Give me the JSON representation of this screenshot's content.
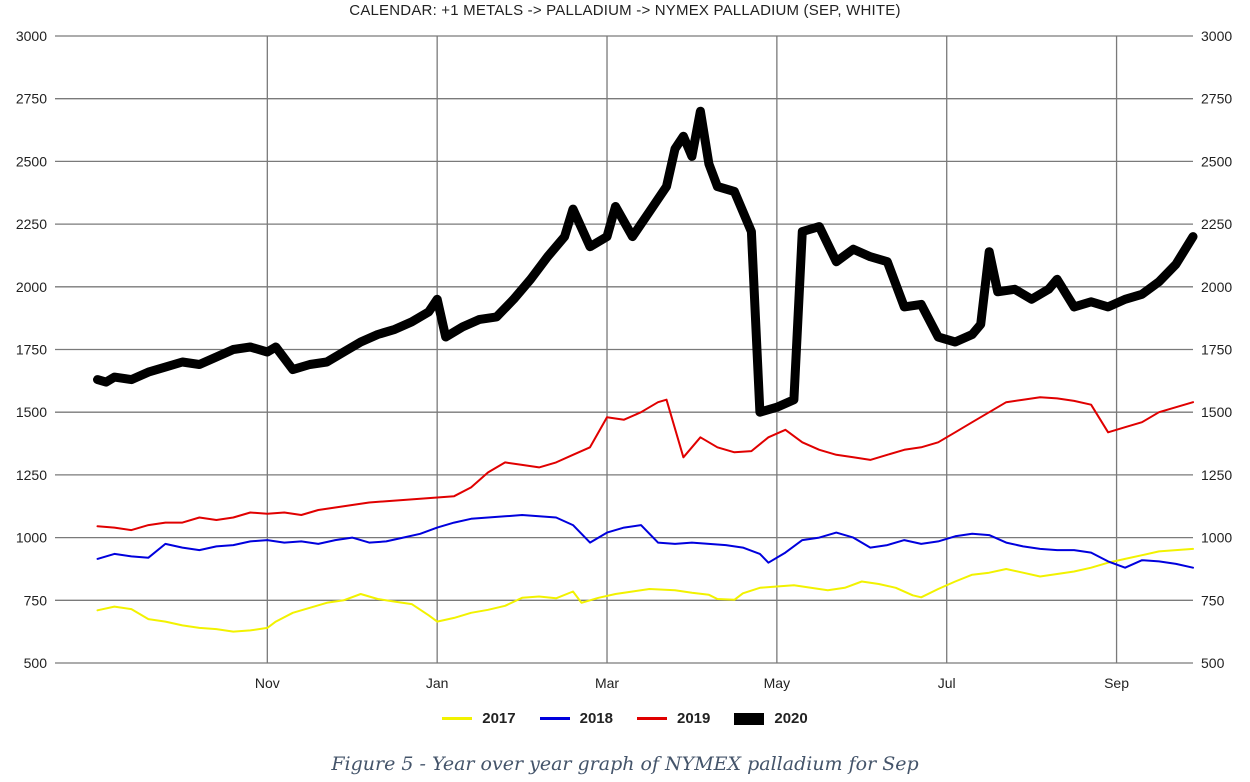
{
  "title": "CALENDAR: +1 METALS -> PALLADIUM -> NYMEX PALLADIUM (SEP, WHITE)",
  "caption": "Figure 5 - Year over year graph of NYMEX palladium for Sep",
  "chart_data": {
    "type": "line",
    "x_unit": "month",
    "x_range": [
      8.5,
      21.9
    ],
    "x_ticks": [
      {
        "label": "Nov",
        "x": 11
      },
      {
        "label": "Jan",
        "x": 13
      },
      {
        "label": "Mar",
        "x": 15
      },
      {
        "label": "May",
        "x": 17
      },
      {
        "label": "Jul",
        "x": 19
      },
      {
        "label": "Sep",
        "x": 21
      }
    ],
    "ylim": [
      500,
      3000
    ],
    "y_ticks": [
      500,
      750,
      1000,
      1250,
      1500,
      1750,
      2000,
      2250,
      2500,
      2750,
      3000
    ],
    "grid": true,
    "legend_position": "bottom",
    "series": [
      {
        "name": "2017",
        "color": "#f2f200",
        "width": 2,
        "points": [
          [
            9.0,
            710
          ],
          [
            9.2,
            725
          ],
          [
            9.4,
            715
          ],
          [
            9.6,
            675
          ],
          [
            9.8,
            665
          ],
          [
            10.0,
            650
          ],
          [
            10.2,
            640
          ],
          [
            10.4,
            635
          ],
          [
            10.6,
            625
          ],
          [
            10.8,
            630
          ],
          [
            11.0,
            640
          ],
          [
            11.1,
            665
          ],
          [
            11.3,
            700
          ],
          [
            11.5,
            720
          ],
          [
            11.7,
            740
          ],
          [
            11.9,
            750
          ],
          [
            12.1,
            775
          ],
          [
            12.3,
            755
          ],
          [
            12.5,
            745
          ],
          [
            12.7,
            735
          ],
          [
            12.9,
            690
          ],
          [
            13.0,
            665
          ],
          [
            13.2,
            680
          ],
          [
            13.4,
            700
          ],
          [
            13.6,
            712
          ],
          [
            13.8,
            728
          ],
          [
            14.0,
            760
          ],
          [
            14.2,
            765
          ],
          [
            14.4,
            758
          ],
          [
            14.6,
            785
          ],
          [
            14.7,
            740
          ],
          [
            14.9,
            760
          ],
          [
            15.1,
            775
          ],
          [
            15.3,
            785
          ],
          [
            15.5,
            795
          ],
          [
            15.8,
            790
          ],
          [
            16.0,
            780
          ],
          [
            16.2,
            772
          ],
          [
            16.3,
            755
          ],
          [
            16.5,
            752
          ],
          [
            16.6,
            778
          ],
          [
            16.8,
            800
          ],
          [
            17.0,
            805
          ],
          [
            17.2,
            810
          ],
          [
            17.4,
            800
          ],
          [
            17.6,
            790
          ],
          [
            17.8,
            800
          ],
          [
            18.0,
            825
          ],
          [
            18.2,
            815
          ],
          [
            18.4,
            800
          ],
          [
            18.6,
            770
          ],
          [
            18.7,
            762
          ],
          [
            18.9,
            795
          ],
          [
            19.1,
            825
          ],
          [
            19.3,
            852
          ],
          [
            19.5,
            860
          ],
          [
            19.7,
            875
          ],
          [
            19.9,
            860
          ],
          [
            20.1,
            845
          ],
          [
            20.3,
            855
          ],
          [
            20.5,
            865
          ],
          [
            20.7,
            880
          ],
          [
            20.9,
            900
          ],
          [
            21.1,
            915
          ],
          [
            21.3,
            930
          ],
          [
            21.5,
            945
          ],
          [
            21.7,
            950
          ],
          [
            21.9,
            955
          ]
        ]
      },
      {
        "name": "2018",
        "color": "#0000dd",
        "width": 2,
        "points": [
          [
            9.0,
            915
          ],
          [
            9.2,
            935
          ],
          [
            9.4,
            925
          ],
          [
            9.6,
            920
          ],
          [
            9.8,
            975
          ],
          [
            10.0,
            960
          ],
          [
            10.2,
            950
          ],
          [
            10.4,
            965
          ],
          [
            10.6,
            970
          ],
          [
            10.8,
            985
          ],
          [
            11.0,
            990
          ],
          [
            11.2,
            980
          ],
          [
            11.4,
            985
          ],
          [
            11.6,
            975
          ],
          [
            11.8,
            990
          ],
          [
            12.0,
            1000
          ],
          [
            12.2,
            980
          ],
          [
            12.4,
            985
          ],
          [
            12.6,
            1000
          ],
          [
            12.8,
            1015
          ],
          [
            13.0,
            1040
          ],
          [
            13.2,
            1060
          ],
          [
            13.4,
            1075
          ],
          [
            13.6,
            1080
          ],
          [
            13.8,
            1085
          ],
          [
            14.0,
            1090
          ],
          [
            14.2,
            1085
          ],
          [
            14.4,
            1080
          ],
          [
            14.6,
            1050
          ],
          [
            14.8,
            980
          ],
          [
            15.0,
            1020
          ],
          [
            15.2,
            1040
          ],
          [
            15.4,
            1050
          ],
          [
            15.6,
            980
          ],
          [
            15.8,
            975
          ],
          [
            16.0,
            980
          ],
          [
            16.2,
            975
          ],
          [
            16.4,
            970
          ],
          [
            16.6,
            960
          ],
          [
            16.8,
            935
          ],
          [
            16.9,
            900
          ],
          [
            17.1,
            940
          ],
          [
            17.3,
            990
          ],
          [
            17.5,
            1000
          ],
          [
            17.7,
            1020
          ],
          [
            17.9,
            1000
          ],
          [
            18.1,
            960
          ],
          [
            18.3,
            970
          ],
          [
            18.5,
            990
          ],
          [
            18.7,
            975
          ],
          [
            18.9,
            985
          ],
          [
            19.1,
            1005
          ],
          [
            19.3,
            1015
          ],
          [
            19.5,
            1010
          ],
          [
            19.7,
            980
          ],
          [
            19.9,
            965
          ],
          [
            20.1,
            955
          ],
          [
            20.3,
            950
          ],
          [
            20.5,
            950
          ],
          [
            20.7,
            940
          ],
          [
            20.9,
            905
          ],
          [
            21.1,
            880
          ],
          [
            21.3,
            910
          ],
          [
            21.5,
            905
          ],
          [
            21.7,
            895
          ],
          [
            21.9,
            880
          ]
        ]
      },
      {
        "name": "2019",
        "color": "#e00000",
        "width": 2,
        "points": [
          [
            9.0,
            1045
          ],
          [
            9.2,
            1040
          ],
          [
            9.4,
            1030
          ],
          [
            9.6,
            1050
          ],
          [
            9.8,
            1060
          ],
          [
            10.0,
            1060
          ],
          [
            10.2,
            1080
          ],
          [
            10.4,
            1070
          ],
          [
            10.6,
            1080
          ],
          [
            10.8,
            1100
          ],
          [
            11.0,
            1095
          ],
          [
            11.2,
            1100
          ],
          [
            11.4,
            1090
          ],
          [
            11.6,
            1110
          ],
          [
            11.8,
            1120
          ],
          [
            12.0,
            1130
          ],
          [
            12.2,
            1140
          ],
          [
            12.4,
            1145
          ],
          [
            12.6,
            1150
          ],
          [
            12.8,
            1155
          ],
          [
            13.0,
            1160
          ],
          [
            13.2,
            1165
          ],
          [
            13.4,
            1200
          ],
          [
            13.6,
            1260
          ],
          [
            13.8,
            1300
          ],
          [
            14.0,
            1290
          ],
          [
            14.2,
            1280
          ],
          [
            14.4,
            1300
          ],
          [
            14.6,
            1330
          ],
          [
            14.8,
            1360
          ],
          [
            15.0,
            1480
          ],
          [
            15.2,
            1470
          ],
          [
            15.4,
            1500
          ],
          [
            15.6,
            1540
          ],
          [
            15.7,
            1550
          ],
          [
            15.9,
            1320
          ],
          [
            16.1,
            1400
          ],
          [
            16.3,
            1360
          ],
          [
            16.5,
            1340
          ],
          [
            16.7,
            1345
          ],
          [
            16.9,
            1400
          ],
          [
            17.1,
            1430
          ],
          [
            17.3,
            1380
          ],
          [
            17.5,
            1350
          ],
          [
            17.7,
            1330
          ],
          [
            17.9,
            1320
          ],
          [
            18.1,
            1310
          ],
          [
            18.3,
            1330
          ],
          [
            18.5,
            1350
          ],
          [
            18.7,
            1360
          ],
          [
            18.9,
            1380
          ],
          [
            19.1,
            1420
          ],
          [
            19.3,
            1460
          ],
          [
            19.5,
            1500
          ],
          [
            19.7,
            1540
          ],
          [
            19.9,
            1550
          ],
          [
            20.1,
            1560
          ],
          [
            20.3,
            1555
          ],
          [
            20.5,
            1545
          ],
          [
            20.7,
            1530
          ],
          [
            20.9,
            1420
          ],
          [
            21.1,
            1440
          ],
          [
            21.3,
            1460
          ],
          [
            21.5,
            1500
          ],
          [
            21.7,
            1520
          ],
          [
            21.9,
            1540
          ]
        ]
      },
      {
        "name": "2020",
        "color": "#000000",
        "width": 9,
        "points": [
          [
            9.0,
            1630
          ],
          [
            9.1,
            1620
          ],
          [
            9.2,
            1640
          ],
          [
            9.4,
            1630
          ],
          [
            9.6,
            1660
          ],
          [
            9.8,
            1680
          ],
          [
            10.0,
            1700
          ],
          [
            10.2,
            1690
          ],
          [
            10.4,
            1720
          ],
          [
            10.6,
            1750
          ],
          [
            10.8,
            1760
          ],
          [
            11.0,
            1740
          ],
          [
            11.1,
            1760
          ],
          [
            11.3,
            1670
          ],
          [
            11.5,
            1690
          ],
          [
            11.7,
            1700
          ],
          [
            11.9,
            1740
          ],
          [
            12.1,
            1780
          ],
          [
            12.3,
            1810
          ],
          [
            12.5,
            1830
          ],
          [
            12.7,
            1860
          ],
          [
            12.9,
            1900
          ],
          [
            13.0,
            1950
          ],
          [
            13.1,
            1800
          ],
          [
            13.3,
            1840
          ],
          [
            13.5,
            1870
          ],
          [
            13.7,
            1880
          ],
          [
            13.9,
            1950
          ],
          [
            14.1,
            2030
          ],
          [
            14.3,
            2120
          ],
          [
            14.5,
            2200
          ],
          [
            14.6,
            2310
          ],
          [
            14.8,
            2160
          ],
          [
            15.0,
            2200
          ],
          [
            15.1,
            2320
          ],
          [
            15.3,
            2200
          ],
          [
            15.5,
            2300
          ],
          [
            15.7,
            2400
          ],
          [
            15.8,
            2550
          ],
          [
            15.9,
            2600
          ],
          [
            16.0,
            2520
          ],
          [
            16.1,
            2700
          ],
          [
            16.2,
            2490
          ],
          [
            16.3,
            2400
          ],
          [
            16.5,
            2380
          ],
          [
            16.7,
            2220
          ],
          [
            16.8,
            1500
          ],
          [
            17.0,
            1520
          ],
          [
            17.2,
            1550
          ],
          [
            17.3,
            2220
          ],
          [
            17.5,
            2240
          ],
          [
            17.7,
            2100
          ],
          [
            17.9,
            2150
          ],
          [
            18.1,
            2120
          ],
          [
            18.3,
            2100
          ],
          [
            18.5,
            1920
          ],
          [
            18.7,
            1930
          ],
          [
            18.9,
            1800
          ],
          [
            19.1,
            1780
          ],
          [
            19.3,
            1810
          ],
          [
            19.4,
            1850
          ],
          [
            19.5,
            2140
          ],
          [
            19.6,
            1980
          ],
          [
            19.8,
            1990
          ],
          [
            20.0,
            1950
          ],
          [
            20.2,
            1990
          ],
          [
            20.3,
            2030
          ],
          [
            20.5,
            1920
          ],
          [
            20.7,
            1940
          ],
          [
            20.9,
            1920
          ],
          [
            21.1,
            1950
          ],
          [
            21.3,
            1970
          ],
          [
            21.5,
            2020
          ],
          [
            21.7,
            2090
          ],
          [
            21.9,
            2200
          ]
        ]
      }
    ]
  }
}
